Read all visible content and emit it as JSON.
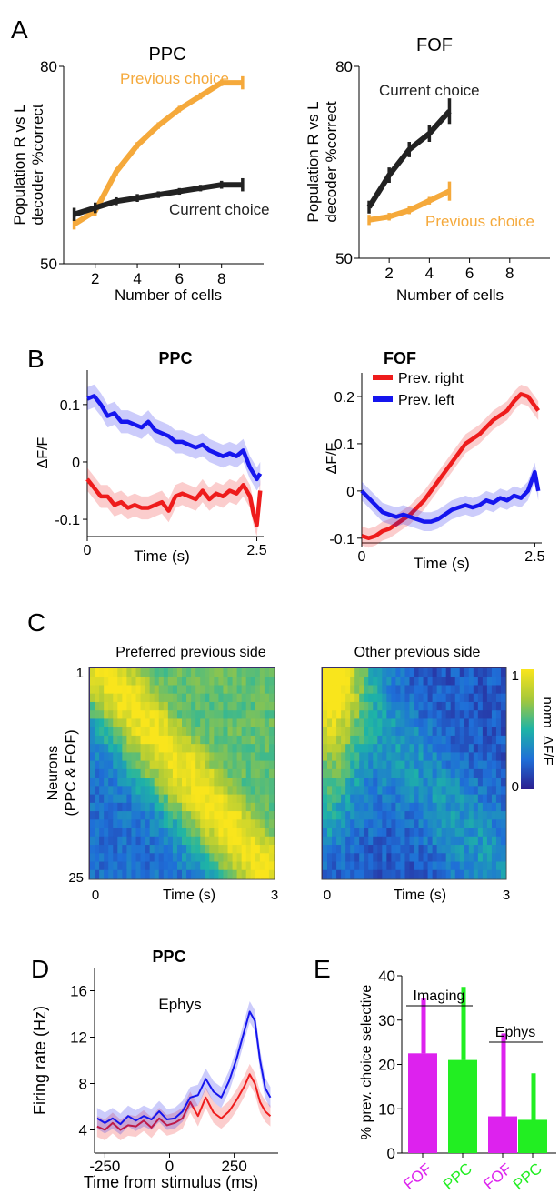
{
  "colors": {
    "orange": "#f5a93b",
    "black": "#222222",
    "red": "#ee1c1c",
    "blue": "#1515ee",
    "magenta": "#dd22ee",
    "green": "#22ee22"
  },
  "panels": {
    "A": {
      "letter": "A"
    },
    "B": {
      "letter": "B"
    },
    "C": {
      "letter": "C"
    },
    "D": {
      "letter": "D"
    },
    "E": {
      "letter": "E"
    }
  },
  "chart_data": [
    {
      "id": "A_PPC",
      "type": "line",
      "title": "PPC",
      "xlabel": "Number of cells",
      "ylabel_lines": [
        "Population R vs L",
        "decoder %correct"
      ],
      "xlim": [
        0.5,
        10
      ],
      "ylim": [
        50,
        80
      ],
      "xticks": [
        2,
        4,
        6,
        8
      ],
      "yticks": [
        50,
        80
      ],
      "grid": false,
      "series": [
        {
          "name": "Previous choice",
          "color": "#f5a93b",
          "x": [
            1,
            2,
            3,
            4,
            5,
            6,
            7,
            8,
            9
          ],
          "y": [
            56,
            58,
            64,
            68,
            71,
            73.5,
            75.5,
            77.5,
            77.5
          ],
          "err": [
            0.8,
            0.7,
            0.6,
            0.5,
            0.5,
            0.5,
            0.5,
            0.5,
            1.0
          ]
        },
        {
          "name": "Current choice",
          "color": "#222222",
          "x": [
            1,
            2,
            3,
            4,
            5,
            6,
            7,
            8,
            9
          ],
          "y": [
            57.5,
            58.5,
            59.5,
            60,
            60.5,
            61,
            61.5,
            62,
            62
          ],
          "err": [
            1.0,
            0.8,
            0.6,
            0.6,
            0.5,
            0.5,
            0.5,
            0.6,
            1.0
          ]
        }
      ],
      "annotations": [
        {
          "text": "Previous choice",
          "x": 2.8,
          "y": 77,
          "color": "#f5a93b"
        },
        {
          "text": "Current choice",
          "x": 5.0,
          "y": 58.2,
          "color": "#222222"
        }
      ]
    },
    {
      "id": "A_FOF",
      "type": "line",
      "title": "FOF",
      "xlabel": "Number of cells",
      "ylabel_lines": [
        "Population R vs L",
        "decoder %correct"
      ],
      "xlim": [
        0.5,
        10
      ],
      "ylim": [
        50,
        80
      ],
      "xticks": [
        2,
        4,
        6,
        8
      ],
      "yticks": [
        50,
        80
      ],
      "grid": false,
      "series": [
        {
          "name": "Current choice",
          "color": "#222222",
          "x": [
            1,
            2,
            3,
            4,
            5
          ],
          "y": [
            58,
            63,
            67,
            69.5,
            73
          ],
          "err": [
            1.0,
            1.2,
            1.2,
            1.3,
            2.0
          ]
        },
        {
          "name": "Previous choice",
          "color": "#f5a93b",
          "x": [
            1,
            2,
            3,
            4,
            5
          ],
          "y": [
            56,
            56.5,
            57.5,
            59,
            60.5
          ],
          "err": [
            0.8,
            0.6,
            0.6,
            0.6,
            1.5
          ]
        }
      ],
      "annotations": [
        {
          "text": "Current choice",
          "x": 2.3,
          "y": 75.8,
          "color": "#222222"
        },
        {
          "text": "Previous choice",
          "x": 3.1,
          "y": 55.8,
          "color": "#f5a93b"
        }
      ]
    },
    {
      "id": "B_PPC",
      "type": "line",
      "title": "PPC",
      "xlabel": "Time (s)",
      "ylabel": "ΔF/F",
      "xlim": [
        0,
        2.6
      ],
      "ylim": [
        -0.13,
        0.16
      ],
      "xtick_labels": [
        {
          "v": 0,
          "t": "0"
        },
        {
          "v": 2.5,
          "t": "2.5"
        }
      ],
      "ytick_labels": [
        {
          "v": 0.1,
          "t": "0.1"
        },
        {
          "v": 0,
          "t": "0"
        },
        {
          "v": -0.1,
          "t": "-0.1"
        }
      ],
      "grid": false,
      "band": 0.02,
      "series": [
        {
          "name": "Prev. left",
          "color": "#1515ee",
          "x": [
            0,
            0.1,
            0.2,
            0.3,
            0.4,
            0.5,
            0.6,
            0.7,
            0.8,
            0.9,
            1.0,
            1.1,
            1.2,
            1.3,
            1.4,
            1.5,
            1.6,
            1.7,
            1.8,
            1.9,
            2.0,
            2.1,
            2.2,
            2.3,
            2.4,
            2.5,
            2.55
          ],
          "y": [
            0.11,
            0.115,
            0.1,
            0.08,
            0.085,
            0.07,
            0.07,
            0.065,
            0.06,
            0.07,
            0.055,
            0.05,
            0.045,
            0.035,
            0.035,
            0.03,
            0.025,
            0.03,
            0.02,
            0.015,
            0.01,
            0.015,
            0.01,
            0.02,
            -0.01,
            -0.03,
            -0.02
          ]
        },
        {
          "name": "Prev. right",
          "color": "#ee1c1c",
          "x": [
            0,
            0.1,
            0.2,
            0.3,
            0.4,
            0.5,
            0.6,
            0.7,
            0.8,
            0.9,
            1.0,
            1.1,
            1.2,
            1.3,
            1.4,
            1.5,
            1.6,
            1.7,
            1.8,
            1.9,
            2.0,
            2.1,
            2.2,
            2.3,
            2.4,
            2.45,
            2.5,
            2.55
          ],
          "y": [
            -0.03,
            -0.045,
            -0.06,
            -0.06,
            -0.075,
            -0.07,
            -0.08,
            -0.075,
            -0.08,
            -0.08,
            -0.075,
            -0.07,
            -0.085,
            -0.06,
            -0.055,
            -0.06,
            -0.065,
            -0.05,
            -0.065,
            -0.055,
            -0.06,
            -0.05,
            -0.055,
            -0.04,
            -0.06,
            -0.09,
            -0.11,
            -0.05
          ]
        }
      ]
    },
    {
      "id": "B_FOF",
      "type": "line",
      "title": "FOF",
      "xlabel": "Time (s)",
      "ylabel": "ΔF/F",
      "xlim": [
        0,
        2.6
      ],
      "ylim": [
        -0.11,
        0.25
      ],
      "xtick_labels": [
        {
          "v": 0,
          "t": "0"
        },
        {
          "v": 2.5,
          "t": "2.5"
        }
      ],
      "ytick_labels": [
        {
          "v": 0.2,
          "t": "0.2"
        },
        {
          "v": 0.1,
          "t": "0.1"
        },
        {
          "v": 0,
          "t": "0"
        },
        {
          "v": -0.1,
          "t": "-0.1"
        }
      ],
      "grid": false,
      "band": 0.02,
      "legend": [
        {
          "text": "Prev. right",
          "color": "#ee1c1c"
        },
        {
          "text": "Prev. left",
          "color": "#1515ee"
        }
      ],
      "series": [
        {
          "name": "Prev. right",
          "color": "#ee1c1c",
          "x": [
            0,
            0.1,
            0.2,
            0.3,
            0.4,
            0.5,
            0.6,
            0.7,
            0.8,
            0.9,
            1.0,
            1.1,
            1.2,
            1.3,
            1.4,
            1.5,
            1.6,
            1.7,
            1.8,
            1.9,
            2.0,
            2.1,
            2.2,
            2.3,
            2.4,
            2.5,
            2.55
          ],
          "y": [
            -0.095,
            -0.1,
            -0.095,
            -0.085,
            -0.08,
            -0.07,
            -0.06,
            -0.05,
            -0.035,
            -0.02,
            0.0,
            0.02,
            0.04,
            0.06,
            0.08,
            0.1,
            0.11,
            0.12,
            0.135,
            0.15,
            0.16,
            0.17,
            0.19,
            0.205,
            0.2,
            0.18,
            0.17
          ]
        },
        {
          "name": "Prev. left",
          "color": "#1515ee",
          "x": [
            0,
            0.1,
            0.2,
            0.3,
            0.4,
            0.5,
            0.6,
            0.7,
            0.8,
            0.9,
            1.0,
            1.1,
            1.2,
            1.3,
            1.4,
            1.5,
            1.6,
            1.7,
            1.8,
            1.9,
            2.0,
            2.1,
            2.2,
            2.3,
            2.4,
            2.5,
            2.55
          ],
          "y": [
            0.0,
            -0.015,
            -0.03,
            -0.045,
            -0.05,
            -0.055,
            -0.05,
            -0.055,
            -0.06,
            -0.065,
            -0.065,
            -0.06,
            -0.05,
            -0.04,
            -0.035,
            -0.03,
            -0.035,
            -0.03,
            -0.02,
            -0.025,
            -0.015,
            -0.02,
            -0.01,
            -0.015,
            0.0,
            0.04,
            0.0
          ]
        }
      ]
    },
    {
      "id": "C_pref",
      "type": "heatmap",
      "title": "Preferred previous side",
      "xlabel": "Time (s)",
      "ylabel_lines": [
        "Neurons",
        "(PPC & FOF)"
      ],
      "xlim": [
        0,
        3
      ],
      "xtick_labels": [
        {
          "v": 0,
          "t": "0"
        },
        {
          "v": 3,
          "t": "3"
        }
      ],
      "ytick_labels": [
        {
          "row": 1,
          "t": "1"
        },
        {
          "row": 25,
          "t": "25"
        }
      ],
      "rows": 25,
      "cols": 40,
      "note": "each neuron's normalized ΔF/F rises toward a peak time that shifts later from row 1 to row 25"
    },
    {
      "id": "C_other",
      "type": "heatmap",
      "title": "Other previous side",
      "xlabel": "Time (s)",
      "xlim": [
        0,
        3
      ],
      "xtick_labels": [
        {
          "v": 0,
          "t": "0"
        },
        {
          "v": 3,
          "t": "3"
        }
      ],
      "rows": 25,
      "cols": 40,
      "colorbar": {
        "label": "norm  ΔF/F",
        "min_label": "0",
        "max_label": "1"
      }
    },
    {
      "id": "D_PPC",
      "type": "line",
      "title": "PPC",
      "subtitle": "Ephys",
      "xlabel": "Time from stimulus (ms)",
      "ylabel": "Firing rate (Hz)",
      "xlim": [
        -290,
        420
      ],
      "ylim": [
        2,
        18
      ],
      "xtick_labels": [
        {
          "v": -250,
          "t": "-250"
        },
        {
          "v": 0,
          "t": "0"
        },
        {
          "v": 250,
          "t": "250"
        }
      ],
      "ytick_labels": [
        {
          "v": 4,
          "t": "4"
        },
        {
          "v": 8,
          "t": "8"
        },
        {
          "v": 12,
          "t": "12"
        },
        {
          "v": 16,
          "t": "16"
        }
      ],
      "grid": false,
      "band": 0.9,
      "series": [
        {
          "name": "",
          "color": "#ee1c1c",
          "x": [
            -280,
            -250,
            -220,
            -190,
            -160,
            -130,
            -100,
            -70,
            -40,
            -10,
            20,
            50,
            80,
            110,
            140,
            170,
            200,
            230,
            260,
            290,
            310,
            330,
            350,
            370,
            390
          ],
          "y": [
            4.3,
            4.0,
            4.6,
            4.0,
            4.4,
            4.3,
            4.8,
            4.2,
            5.0,
            4.4,
            4.6,
            5.0,
            6.4,
            5.2,
            6.8,
            5.5,
            5.0,
            5.6,
            6.6,
            7.8,
            8.8,
            8.0,
            6.4,
            5.6,
            5.2
          ]
        },
        {
          "name": "",
          "color": "#1515ee",
          "x": [
            -280,
            -250,
            -220,
            -190,
            -160,
            -130,
            -100,
            -70,
            -40,
            -10,
            20,
            50,
            80,
            110,
            140,
            170,
            200,
            230,
            260,
            290,
            310,
            330,
            350,
            370,
            390
          ],
          "y": [
            5.0,
            4.6,
            5.0,
            4.5,
            5.2,
            4.8,
            5.2,
            4.9,
            5.6,
            4.9,
            5.0,
            5.6,
            6.8,
            7.0,
            8.4,
            7.3,
            6.8,
            8.2,
            10.2,
            12.6,
            14.2,
            13.4,
            10.0,
            7.6,
            6.8
          ]
        }
      ]
    },
    {
      "id": "E",
      "type": "bar",
      "ylabel": "% prev. choice selective",
      "ylim": [
        0,
        40
      ],
      "ytick_labels": [
        {
          "v": 0,
          "t": "0"
        },
        {
          "v": 10,
          "t": "10"
        },
        {
          "v": 20,
          "t": "20"
        },
        {
          "v": 30,
          "t": "30"
        },
        {
          "v": 40,
          "t": "40"
        }
      ],
      "categories": [
        "FOF",
        "PPC",
        "FOF",
        "PPC"
      ],
      "values": [
        22.5,
        21,
        8.3,
        7.5
      ],
      "upper": [
        35,
        37.5,
        27,
        18
      ],
      "colors": [
        "#dd22ee",
        "#22ee22",
        "#dd22ee",
        "#22ee22"
      ],
      "groups": [
        {
          "label": "Imaging",
          "bars": [
            0,
            1
          ]
        },
        {
          "label": "Ephys",
          "bars": [
            2,
            3
          ]
        }
      ]
    }
  ]
}
